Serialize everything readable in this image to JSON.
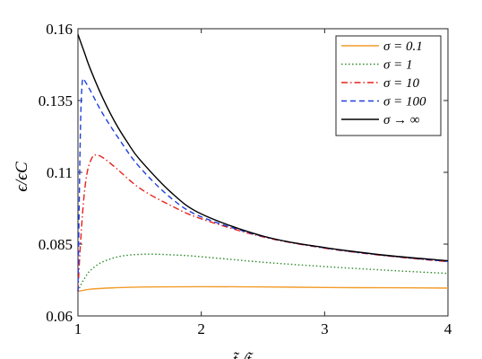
{
  "chart_data": {
    "type": "line",
    "ylabel": "ϵ/ϵC",
    "xlabel": "t̃ /t̃",
    "xlim": [
      1,
      4
    ],
    "ylim": [
      0.06,
      0.16
    ],
    "x_ticks": [
      "1",
      "2",
      "3",
      "4"
    ],
    "y_ticks": [
      "0.06",
      "0.085",
      "0.11",
      "0.135",
      "0.16"
    ],
    "legend_position": "top-right",
    "grid": false,
    "series": [
      {
        "name": "σ = 0.1",
        "color": "#F39C2B",
        "dash": "solid",
        "x": [
          1.0,
          1.1,
          1.3,
          1.6,
          2.0,
          2.5,
          3.0,
          3.5,
          4.0
        ],
        "y": [
          0.0685,
          0.0693,
          0.0698,
          0.0701,
          0.0702,
          0.0701,
          0.0699,
          0.0698,
          0.0697
        ]
      },
      {
        "name": "σ = 1",
        "color": "#2E8B2E",
        "dash": "dotted",
        "x": [
          1.0,
          1.02,
          1.05,
          1.1,
          1.2,
          1.35,
          1.55,
          1.8,
          2.0,
          2.5,
          3.0,
          3.5,
          4.0
        ],
        "y": [
          0.0685,
          0.0705,
          0.0728,
          0.0758,
          0.0788,
          0.0808,
          0.0815,
          0.0812,
          0.0806,
          0.0787,
          0.0772,
          0.0759,
          0.0748
        ]
      },
      {
        "name": "σ = 10",
        "color": "#E8221B",
        "dash": "dashdot",
        "x": [
          1.0,
          1.02,
          1.05,
          1.08,
          1.12,
          1.15,
          1.2,
          1.3,
          1.5,
          1.75,
          2.0,
          2.5,
          3.0,
          3.5,
          4.0
        ],
        "y": [
          0.0685,
          0.085,
          0.102,
          0.111,
          0.1155,
          0.116,
          0.1152,
          0.1118,
          0.1045,
          0.0985,
          0.0938,
          0.0875,
          0.0836,
          0.0809,
          0.0789
        ]
      },
      {
        "name": "σ = 100",
        "color": "#1F3FE0",
        "dash": "dashed",
        "x": [
          1.0,
          1.01,
          1.02,
          1.03,
          1.04,
          1.06,
          1.1,
          1.2,
          1.35,
          1.5,
          1.75,
          2.0,
          2.5,
          3.0,
          3.5,
          4.0
        ],
        "y": [
          0.0685,
          0.098,
          0.125,
          0.138,
          0.1425,
          0.1415,
          0.1385,
          0.1305,
          0.1205,
          0.1118,
          0.1012,
          0.0945,
          0.0877,
          0.0837,
          0.081,
          0.079
        ]
      },
      {
        "name": "σ → ∞",
        "color": "#000000",
        "dash": "solid",
        "x": [
          1.0,
          1.05,
          1.1,
          1.2,
          1.3,
          1.4,
          1.5,
          1.75,
          2.0,
          2.5,
          3.0,
          3.5,
          4.0
        ],
        "y": [
          0.158,
          0.152,
          0.146,
          0.136,
          0.1275,
          0.1205,
          0.1145,
          0.1032,
          0.0955,
          0.0878,
          0.0838,
          0.0811,
          0.0792
        ]
      }
    ]
  }
}
